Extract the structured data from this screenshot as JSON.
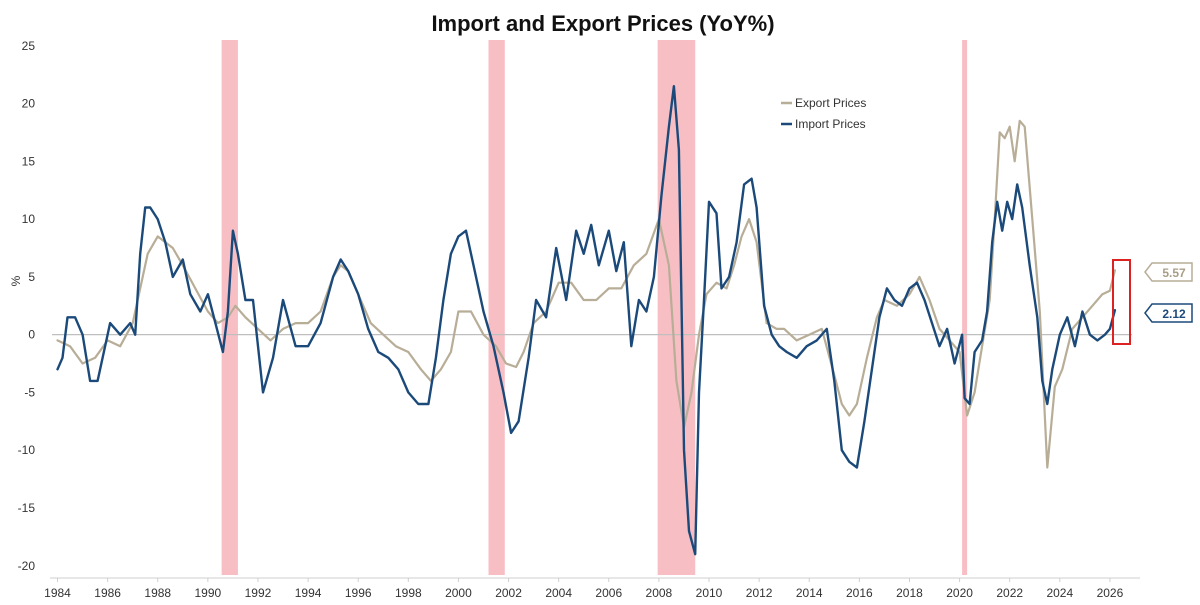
{
  "chart_data": {
    "type": "line",
    "title": "Import and Export Prices (YoY%)",
    "xlabel": "",
    "ylabel": "%",
    "xlim": [
      1983.7,
      2027.2
    ],
    "ylim": [
      -20.8,
      25.5
    ],
    "yticks": [
      25,
      20,
      15,
      10,
      5,
      0,
      -5,
      -10,
      -15,
      -20
    ],
    "xticks": [
      1984,
      1986,
      1988,
      1990,
      1992,
      1994,
      1996,
      1998,
      2000,
      2002,
      2004,
      2006,
      2008,
      2010,
      2012,
      2014,
      2016,
      2018,
      2020,
      2022,
      2024,
      2026
    ],
    "recessions": [
      [
        1990.55,
        1991.2
      ],
      [
        2001.2,
        2001.85
      ],
      [
        2007.95,
        2009.45
      ],
      [
        2020.1,
        2020.3
      ]
    ],
    "legend": {
      "position": "top-right",
      "entries": [
        "Export Prices",
        "Import Prices"
      ]
    },
    "colors": {
      "export": "#b8ad97",
      "import": "#1b4a7a",
      "recession": "#f7bfc4",
      "zero_line": "#bfbfbf",
      "highlight_box": "#dd2222"
    },
    "series": [
      {
        "name": "Export Prices",
        "x": [
          1984.0,
          1984.5,
          1985.0,
          1985.5,
          1986.0,
          1986.5,
          1987.0,
          1987.3,
          1987.6,
          1988.0,
          1988.3,
          1988.6,
          1989.0,
          1989.5,
          1990.0,
          1990.4,
          1990.8,
          1991.1,
          1991.5,
          1992.0,
          1992.5,
          1993.0,
          1993.5,
          1994.0,
          1994.5,
          1995.0,
          1995.3,
          1995.6,
          1996.0,
          1996.5,
          1997.0,
          1997.5,
          1998.0,
          1998.5,
          1998.9,
          1999.3,
          1999.7,
          2000.0,
          2000.5,
          2001.0,
          2001.5,
          2001.9,
          2002.3,
          2002.6,
          2003.0,
          2003.5,
          2004.0,
          2004.5,
          2005.0,
          2005.5,
          2006.0,
          2006.5,
          2007.0,
          2007.5,
          2008.0,
          2008.4,
          2008.7,
          2009.0,
          2009.3,
          2009.6,
          2009.9,
          2010.3,
          2010.7,
          2011.0,
          2011.3,
          2011.6,
          2011.9,
          2012.3,
          2012.7,
          2013.0,
          2013.5,
          2014.0,
          2014.5,
          2015.0,
          2015.3,
          2015.6,
          2015.9,
          2016.3,
          2016.7,
          2017.0,
          2017.5,
          2018.0,
          2018.4,
          2018.8,
          2019.2,
          2019.6,
          2020.0,
          2020.3,
          2020.6,
          2020.9,
          2021.2,
          2021.4,
          2021.6,
          2021.8,
          2022.0,
          2022.2,
          2022.4,
          2022.6,
          2022.9,
          2023.2,
          2023.5,
          2023.8,
          2024.1,
          2024.5,
          2024.9,
          2025.3,
          2025.7,
          2026.0,
          2026.2
        ],
        "values": [
          -0.5,
          -1.0,
          -2.5,
          -2.0,
          -0.5,
          -1.0,
          1.0,
          4.0,
          7.0,
          8.5,
          8.0,
          7.5,
          6.0,
          4.0,
          2.0,
          1.0,
          1.5,
          2.5,
          1.5,
          0.5,
          -0.5,
          0.5,
          1.0,
          1.0,
          2.0,
          5.0,
          6.0,
          5.5,
          3.5,
          1.0,
          0.0,
          -1.0,
          -1.5,
          -3.0,
          -4.0,
          -3.0,
          -1.5,
          2.0,
          2.0,
          0.0,
          -1.0,
          -2.5,
          -2.8,
          -1.5,
          1.0,
          2.0,
          4.5,
          4.5,
          3.0,
          3.0,
          4.0,
          4.0,
          6.0,
          7.0,
          10.0,
          6.0,
          -4.0,
          -8.0,
          -5.0,
          0.0,
          3.5,
          4.5,
          4.0,
          6.0,
          8.5,
          10.0,
          8.0,
          1.0,
          0.5,
          0.5,
          -0.5,
          0.0,
          0.5,
          -3.5,
          -6.0,
          -7.0,
          -6.0,
          -2.0,
          1.5,
          3.0,
          2.5,
          3.5,
          5.0,
          3.0,
          0.5,
          -0.5,
          -1.5,
          -7.0,
          -5.0,
          -1.0,
          3.0,
          10.0,
          17.5,
          17.0,
          18.0,
          15.0,
          18.5,
          18.0,
          10.0,
          2.0,
          -11.5,
          -4.5,
          -3.0,
          0.5,
          1.5,
          2.5,
          3.5,
          3.8,
          5.57
        ]
      },
      {
        "name": "Import Prices",
        "x": [
          1984.0,
          1984.2,
          1984.4,
          1984.7,
          1985.0,
          1985.3,
          1985.6,
          1985.9,
          1986.1,
          1986.5,
          1986.9,
          1987.1,
          1987.3,
          1987.5,
          1987.7,
          1988.0,
          1988.3,
          1988.6,
          1989.0,
          1989.3,
          1989.7,
          1990.0,
          1990.3,
          1990.6,
          1990.8,
          1991.0,
          1991.2,
          1991.5,
          1991.8,
          1992.2,
          1992.6,
          1993.0,
          1993.5,
          1994.0,
          1994.5,
          1995.0,
          1995.3,
          1995.6,
          1996.0,
          1996.4,
          1996.8,
          1997.2,
          1997.6,
          1998.0,
          1998.4,
          1998.8,
          1999.1,
          1999.4,
          1999.7,
          2000.0,
          2000.3,
          2000.6,
          2001.0,
          2001.4,
          2001.8,
          2002.1,
          2002.4,
          2002.8,
          2003.1,
          2003.5,
          2003.9,
          2004.3,
          2004.7,
          2005.0,
          2005.3,
          2005.6,
          2006.0,
          2006.3,
          2006.6,
          2006.9,
          2007.2,
          2007.5,
          2007.8,
          2008.1,
          2008.4,
          2008.6,
          2008.8,
          2009.0,
          2009.2,
          2009.45,
          2009.6,
          2009.8,
          2010.0,
          2010.3,
          2010.5,
          2010.8,
          2011.1,
          2011.4,
          2011.7,
          2011.9,
          2012.2,
          2012.5,
          2012.8,
          2013.1,
          2013.5,
          2013.9,
          2014.3,
          2014.7,
          2015.0,
          2015.3,
          2015.6,
          2015.9,
          2016.2,
          2016.5,
          2016.8,
          2017.1,
          2017.4,
          2017.7,
          2018.0,
          2018.3,
          2018.6,
          2018.9,
          2019.2,
          2019.5,
          2019.8,
          2020.1,
          2020.2,
          2020.4,
          2020.6,
          2020.9,
          2021.1,
          2021.3,
          2021.5,
          2021.7,
          2021.9,
          2022.1,
          2022.3,
          2022.5,
          2022.8,
          2023.1,
          2023.3,
          2023.5,
          2023.7,
          2024.0,
          2024.3,
          2024.6,
          2024.9,
          2025.2,
          2025.5,
          2025.8,
          2026.0,
          2026.2
        ],
        "values": [
          -3.0,
          -2.0,
          1.5,
          1.5,
          0.0,
          -4.0,
          -4.0,
          -1.0,
          1.0,
          0.0,
          1.0,
          0.0,
          7.0,
          11.0,
          11.0,
          10.0,
          8.0,
          5.0,
          6.5,
          3.5,
          2.0,
          3.5,
          1.0,
          -1.5,
          2.0,
          9.0,
          7.0,
          3.0,
          3.0,
          -5.0,
          -2.0,
          3.0,
          -1.0,
          -1.0,
          1.0,
          5.0,
          6.5,
          5.5,
          3.5,
          0.5,
          -1.5,
          -2.0,
          -3.0,
          -5.0,
          -6.0,
          -6.0,
          -2.0,
          3.0,
          7.0,
          8.5,
          9.0,
          6.0,
          2.0,
          -1.0,
          -5.0,
          -8.5,
          -7.5,
          -2.0,
          3.0,
          1.5,
          7.5,
          3.0,
          9.0,
          7.0,
          9.5,
          6.0,
          9.0,
          5.5,
          8.0,
          -1.0,
          3.0,
          2.0,
          5.0,
          12.0,
          18.0,
          21.5,
          16.0,
          -10.0,
          -17.0,
          -19.0,
          -5.0,
          3.0,
          11.5,
          10.5,
          4.0,
          5.0,
          8.0,
          13.0,
          13.5,
          11.0,
          2.5,
          0.0,
          -1.0,
          -1.5,
          -2.0,
          -1.0,
          -0.5,
          0.5,
          -4.0,
          -10.0,
          -11.0,
          -11.5,
          -7.5,
          -3.0,
          1.5,
          4.0,
          3.0,
          2.5,
          4.0,
          4.5,
          3.0,
          1.0,
          -1.0,
          0.5,
          -2.5,
          0.0,
          -5.5,
          -6.0,
          -1.5,
          -0.5,
          2.0,
          8.0,
          11.5,
          9.0,
          11.5,
          10.0,
          13.0,
          11.0,
          6.0,
          1.5,
          -4.0,
          -6.0,
          -3.0,
          0.0,
          1.5,
          -1.0,
          2.0,
          0.0,
          -0.5,
          0.0,
          0.5,
          2.12
        ]
      }
    ],
    "end_labels": [
      {
        "series": "Export Prices",
        "value": 5.57,
        "text": "5.57"
      },
      {
        "series": "Import Prices",
        "value": 2.12,
        "text": "2.12"
      }
    ]
  }
}
